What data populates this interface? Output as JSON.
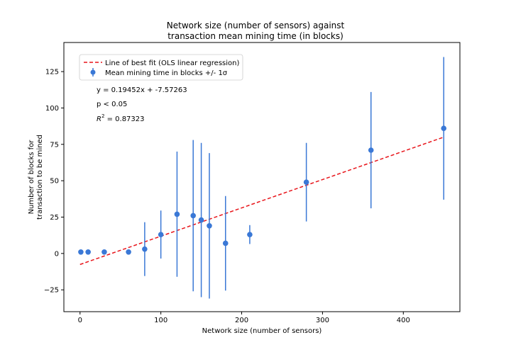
{
  "chart_data": {
    "type": "scatter",
    "title_lines": [
      "Network size (number of sensors) against",
      "transaction mean mining time (in blocks)"
    ],
    "xlabel": "Network size (number of sensors)",
    "ylabel_lines": [
      "Number of blocks for",
      "transaction to be mined"
    ],
    "xlim": [
      -20,
      470
    ],
    "ylim": [
      -40,
      145
    ],
    "xticks": [
      0,
      100,
      200,
      300,
      400
    ],
    "yticks": [
      -25,
      0,
      25,
      50,
      75,
      100,
      125
    ],
    "grid": false,
    "legend_placement": "upper-left",
    "legend": {
      "fit_label": "Line of best fit (OLS linear regression)",
      "points_label": "Mean mining time in blocks +/- 1σ"
    },
    "annotations": {
      "equation": "y = 0.19452x + -7.57263",
      "pvalue": "p < 0.05",
      "r2_prefix": "R",
      "r2_sup": "2",
      "r2_value": " = 0.87323"
    },
    "colors": {
      "points": "#3a78d6",
      "fit": "#e8141a"
    },
    "series": [
      {
        "kind": "errorbar",
        "x": [
          1,
          10,
          30,
          60,
          80,
          100,
          120,
          140,
          150,
          160,
          180,
          210,
          280,
          360,
          450
        ],
        "y": [
          1,
          1,
          1,
          1,
          3,
          13,
          27,
          26,
          23,
          19,
          7,
          13,
          49,
          71,
          86
        ],
        "error": [
          0,
          0,
          0,
          0.5,
          18.5,
          16.5,
          43,
          52,
          53,
          50,
          32.5,
          6.5,
          27,
          40,
          49
        ]
      },
      {
        "kind": "fit_line",
        "slope": 0.19452,
        "intercept": -7.57263,
        "x_range": [
          0,
          450
        ]
      }
    ]
  }
}
